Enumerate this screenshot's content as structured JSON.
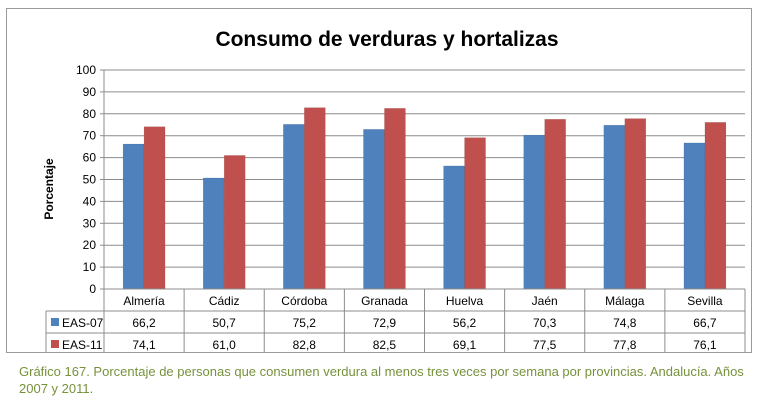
{
  "chart_data": {
    "type": "bar",
    "title": "Consumo de verduras y hortalizas",
    "ylabel": "Porcentaje",
    "xlabel": "",
    "ylim": [
      0,
      100
    ],
    "yticks": [
      0,
      10,
      20,
      30,
      40,
      50,
      60,
      70,
      80,
      90,
      100
    ],
    "grid": true,
    "legend": "table-below",
    "categories": [
      "Almería",
      "Cádiz",
      "Córdoba",
      "Granada",
      "Huelva",
      "Jaén",
      "Málaga",
      "Sevilla"
    ],
    "series": [
      {
        "name": "EAS-07",
        "color": "#4f81bd",
        "values": [
          66.2,
          50.7,
          75.2,
          72.9,
          56.2,
          70.3,
          74.8,
          66.7
        ],
        "labels": [
          "66,2",
          "50,7",
          "75,2",
          "72,9",
          "56,2",
          "70,3",
          "74,8",
          "66,7"
        ]
      },
      {
        "name": "EAS-11",
        "color": "#c0504d",
        "values": [
          74.1,
          61.0,
          82.8,
          82.5,
          69.1,
          77.5,
          77.8,
          76.1
        ],
        "labels": [
          "74,1",
          "61,0",
          "82,8",
          "82,5",
          "69,1",
          "77,5",
          "77,8",
          "76,1"
        ]
      }
    ]
  },
  "caption": "Gráfico 167. Porcentaje de personas que consumen verdura al menos tres veces por semana por provincias. Andalucía. Años 2007 y 2011."
}
